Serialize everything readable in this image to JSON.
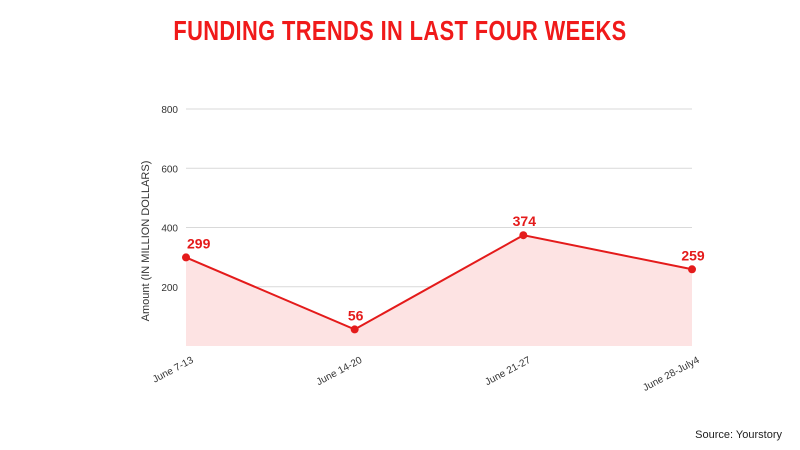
{
  "chart_data": {
    "type": "area",
    "title": "FUNDING TRENDS IN LAST FOUR WEEKS",
    "ylabel": "Amount (IN MILLION DOLLARS)",
    "xlabel": "",
    "categories": [
      "June 7-13",
      "June 14-20",
      "June 21-27",
      "June 28-July4"
    ],
    "series": [
      {
        "values": [
          299,
          56,
          374,
          259
        ]
      }
    ],
    "data_labels": [
      "299",
      "56",
      "374",
      "259"
    ],
    "yticks": [
      200,
      400,
      600,
      800
    ],
    "ytick_labels": [
      "200",
      "400",
      "600",
      "800"
    ],
    "ylim": [
      0,
      800
    ],
    "grid": true,
    "line_color": "#e41b1b",
    "fill_color": "#fde3e3"
  },
  "source": "Source: Yourstory",
  "colors": {
    "title": "#f01a1a",
    "accent": "#e41b1b"
  }
}
